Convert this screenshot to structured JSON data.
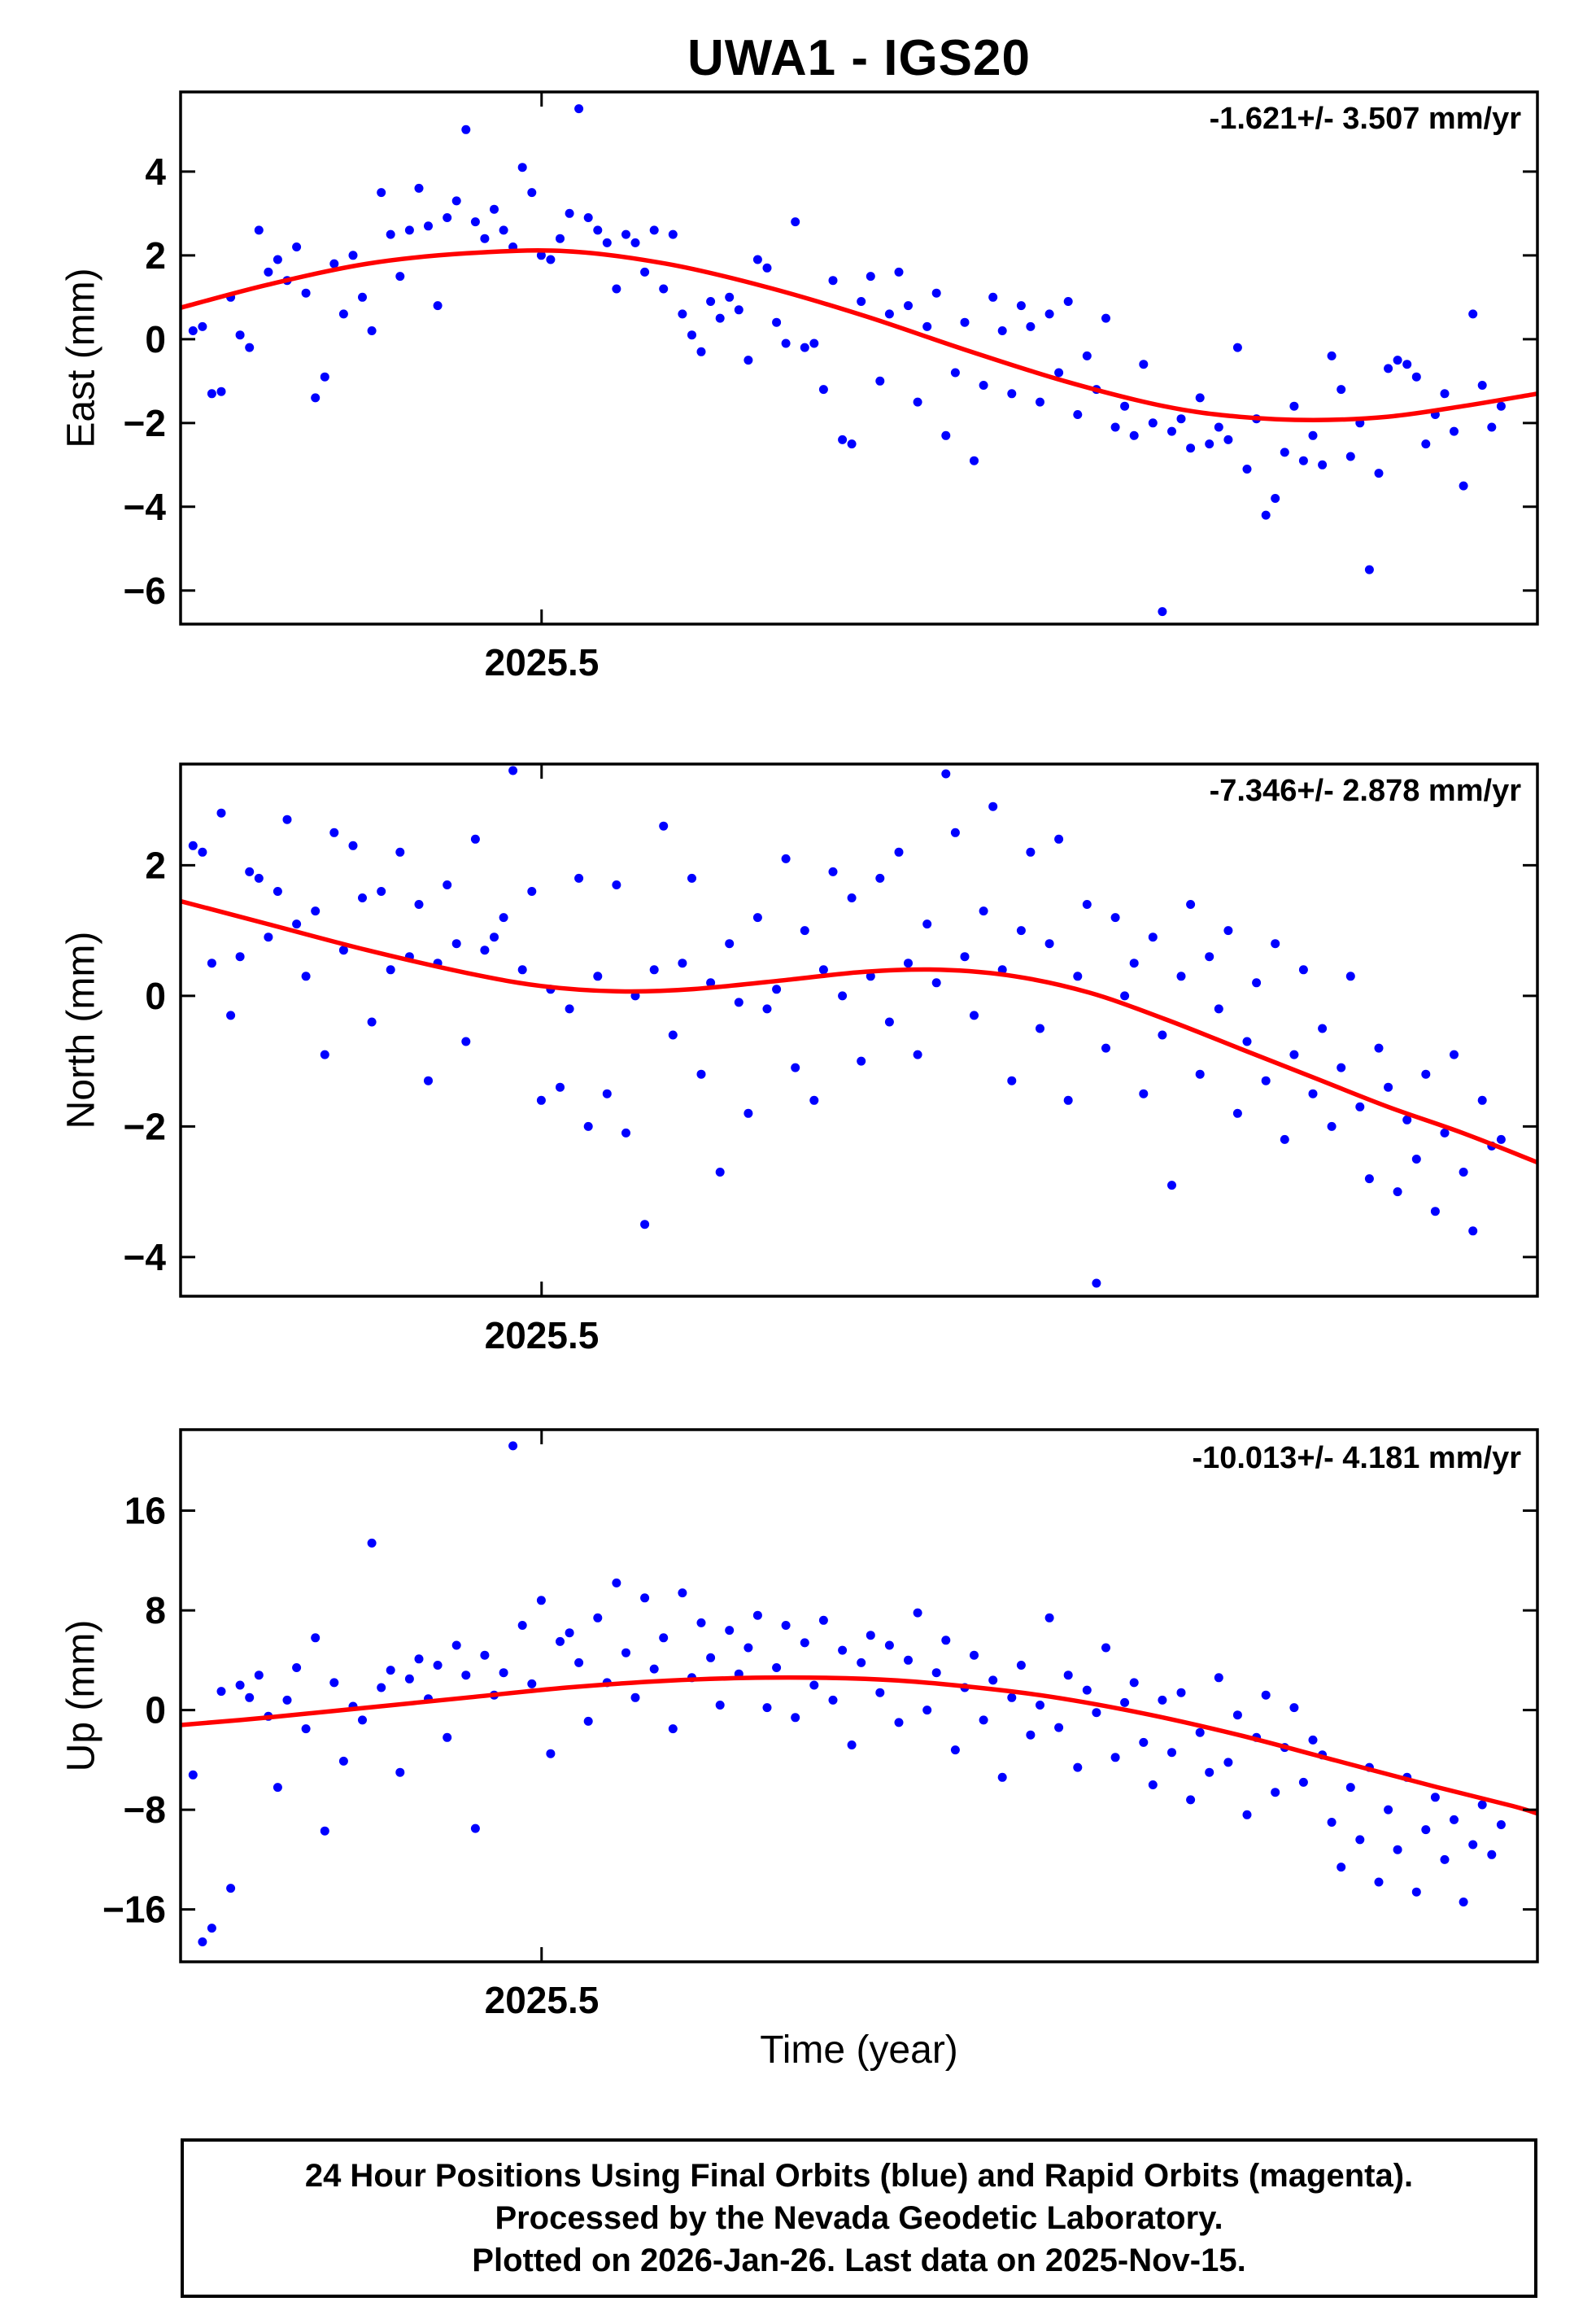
{
  "title": "UWA1 - IGS20",
  "xlabel": "Time (year)",
  "footer": {
    "lines": [
      "24 Hour Positions Using Final Orbits (blue) and Rapid Orbits (magenta).",
      "Processed by the Nevada Geodetic Laboratory.",
      "Plotted on 2026-Jan-26. Last data on 2025-Nov-15."
    ]
  },
  "colors": {
    "points": "#0000ff",
    "trend": "#ff0000",
    "frame": "#000000"
  },
  "chart_data": [
    {
      "type": "scatter",
      "name": "east",
      "ylabel": "East (mm)",
      "rate_label": "-1.621+/- 3.507 mm/yr",
      "xlim": [
        2025.355,
        2025.9
      ],
      "ylim": [
        -6.8,
        5.9
      ],
      "yticks": [
        4,
        2,
        0,
        -2,
        -4,
        -6
      ],
      "xticks": [
        {
          "t": 2025.5,
          "label": "2025.5"
        }
      ],
      "points": {
        "t0": 2025.36,
        "dt": 0.00378,
        "y": [
          0.2,
          0.3,
          -1.3,
          -1.25,
          1.0,
          0.1,
          -0.2,
          2.6,
          1.6,
          1.9,
          1.4,
          2.2,
          1.1,
          -1.4,
          -0.9,
          1.8,
          0.6,
          2.0,
          1.0,
          0.2,
          3.5,
          2.5,
          1.5,
          2.6,
          3.6,
          2.7,
          0.8,
          2.9,
          3.3,
          5.0,
          2.8,
          2.4,
          3.1,
          2.6,
          2.2,
          4.1,
          3.5,
          2.0,
          1.9,
          2.4,
          3.0,
          5.5,
          2.9,
          2.6,
          2.3,
          1.2,
          2.5,
          2.3,
          1.6,
          2.6,
          1.2,
          2.5,
          0.6,
          0.1,
          -0.3,
          0.9,
          0.5,
          1.0,
          0.7,
          -0.5,
          1.9,
          1.7,
          0.4,
          -0.1,
          2.8,
          -0.2,
          -0.1,
          -1.2,
          1.4,
          -2.4,
          -2.5,
          0.9,
          1.5,
          -1.0,
          0.6,
          1.6,
          0.8,
          -1.5,
          0.3,
          1.1,
          -2.3,
          -0.8,
          0.4,
          -2.9,
          -1.1,
          1.0,
          0.2,
          -1.3,
          0.8,
          0.3,
          -1.5,
          0.6,
          -0.8,
          0.9,
          -1.8,
          -0.4,
          -1.2,
          0.5,
          -2.1,
          -1.6,
          -2.3,
          -0.6,
          -2.0,
          -6.5,
          -2.2,
          -1.9,
          -2.6,
          -1.4,
          -2.5,
          -2.1,
          -2.4,
          -0.2,
          -3.1,
          -1.9,
          -4.2,
          -3.8,
          -2.7,
          -1.6,
          -2.9,
          -2.3,
          -3.0,
          -0.4,
          -1.2,
          -2.8,
          -2.0,
          -5.5,
          -3.2,
          -0.7,
          -0.5,
          -0.6,
          -0.9,
          -2.5,
          -1.8,
          -1.3,
          -2.2,
          -3.5,
          0.6,
          -1.1,
          -2.1,
          -1.6
        ]
      },
      "trend": [
        [
          2025.355,
          0.75
        ],
        [
          2025.39,
          1.3
        ],
        [
          2025.43,
          1.8
        ],
        [
          2025.47,
          2.05
        ],
        [
          2025.51,
          2.1
        ],
        [
          2025.55,
          1.8
        ],
        [
          2025.59,
          1.25
        ],
        [
          2025.63,
          0.55
        ],
        [
          2025.67,
          -0.25
        ],
        [
          2025.71,
          -1.0
        ],
        [
          2025.75,
          -1.6
        ],
        [
          2025.78,
          -1.85
        ],
        [
          2025.81,
          -1.93
        ],
        [
          2025.84,
          -1.85
        ],
        [
          2025.87,
          -1.6
        ],
        [
          2025.9,
          -1.3
        ]
      ]
    },
    {
      "type": "scatter",
      "name": "north",
      "ylabel": "North (mm)",
      "rate_label": "-7.346+/- 2.878 mm/yr",
      "xlim": [
        2025.355,
        2025.9
      ],
      "ylim": [
        -4.6,
        3.55
      ],
      "yticks": [
        2,
        0,
        -2,
        -4
      ],
      "xticks": [
        {
          "t": 2025.5,
          "label": "2025.5"
        }
      ],
      "points": {
        "t0": 2025.36,
        "dt": 0.00378,
        "y": [
          2.3,
          2.2,
          0.5,
          2.8,
          -0.3,
          0.6,
          1.9,
          1.8,
          0.9,
          1.6,
          2.7,
          1.1,
          0.3,
          1.3,
          -0.9,
          2.5,
          0.7,
          2.3,
          1.5,
          -0.4,
          1.6,
          0.4,
          2.2,
          0.6,
          1.4,
          -1.3,
          0.5,
          1.7,
          0.8,
          -0.7,
          2.4,
          0.7,
          0.9,
          1.2,
          3.45,
          0.4,
          1.6,
          -1.6,
          0.1,
          -1.4,
          -0.2,
          1.8,
          -2.0,
          0.3,
          -1.5,
          1.7,
          -2.1,
          0.0,
          -3.5,
          0.4,
          2.6,
          -0.6,
          0.5,
          1.8,
          -1.2,
          0.2,
          -2.7,
          0.8,
          -0.1,
          -1.8,
          1.2,
          -0.2,
          0.1,
          2.1,
          -1.1,
          1.0,
          -1.6,
          0.4,
          1.9,
          0.0,
          1.5,
          -1.0,
          0.3,
          1.8,
          -0.4,
          2.2,
          0.5,
          -0.9,
          1.1,
          0.2,
          3.4,
          2.5,
          0.6,
          -0.3,
          1.3,
          2.9,
          0.4,
          -1.3,
          1.0,
          2.2,
          -0.5,
          0.8,
          2.4,
          -1.6,
          0.3,
          1.4,
          -4.4,
          -0.8,
          1.2,
          0.0,
          0.5,
          -1.5,
          0.9,
          -0.6,
          -2.9,
          0.3,
          1.4,
          -1.2,
          0.6,
          -0.2,
          1.0,
          -1.8,
          -0.7,
          0.2,
          -1.3,
          0.8,
          -2.2,
          -0.9,
          0.4,
          -1.5,
          -0.5,
          -2.0,
          -1.1,
          0.3,
          -1.7,
          -2.8,
          -0.8,
          -1.4,
          -3.0,
          -1.9,
          -2.5,
          -1.2,
          -3.3,
          -2.1,
          -0.9,
          -2.7,
          -3.6,
          -1.6,
          -2.3,
          -2.2
        ]
      },
      "trend": [
        [
          2025.355,
          1.45
        ],
        [
          2025.39,
          1.1
        ],
        [
          2025.43,
          0.7
        ],
        [
          2025.47,
          0.35
        ],
        [
          2025.5,
          0.15
        ],
        [
          2025.53,
          0.07
        ],
        [
          2025.56,
          0.1
        ],
        [
          2025.6,
          0.25
        ],
        [
          2025.63,
          0.37
        ],
        [
          2025.66,
          0.4
        ],
        [
          2025.69,
          0.3
        ],
        [
          2025.72,
          0.05
        ],
        [
          2025.75,
          -0.35
        ],
        [
          2025.78,
          -0.8
        ],
        [
          2025.81,
          -1.25
        ],
        [
          2025.84,
          -1.7
        ],
        [
          2025.87,
          -2.1
        ],
        [
          2025.9,
          -2.55
        ]
      ]
    },
    {
      "type": "scatter",
      "name": "up",
      "ylabel": "Up (mm)",
      "rate_label": "-10.013+/- 4.181 mm/yr",
      "xlim": [
        2025.355,
        2025.9
      ],
      "ylim": [
        -20.2,
        22.5
      ],
      "yticks": [
        16,
        8,
        0,
        -8,
        -16
      ],
      "xticks": [
        {
          "t": 2025.5,
          "label": "2025.5"
        }
      ],
      "points": {
        "t0": 2025.36,
        "dt": 0.00378,
        "y": [
          -5.2,
          -18.6,
          -17.5,
          1.5,
          -14.3,
          2.0,
          1.0,
          2.8,
          -0.5,
          -6.2,
          0.8,
          3.4,
          -1.5,
          5.8,
          -9.7,
          2.2,
          -4.1,
          0.3,
          -0.8,
          13.4,
          1.8,
          3.2,
          -5.0,
          2.5,
          4.1,
          0.9,
          3.6,
          -2.2,
          5.2,
          2.8,
          -9.5,
          4.4,
          1.2,
          3.0,
          21.2,
          6.8,
          2.1,
          8.8,
          -3.5,
          5.5,
          6.2,
          3.8,
          -0.9,
          7.4,
          2.2,
          10.2,
          4.6,
          1.0,
          9.0,
          3.3,
          5.8,
          -1.5,
          9.4,
          2.6,
          7.0,
          4.2,
          0.4,
          6.4,
          2.9,
          5.0,
          7.6,
          0.2,
          3.4,
          6.8,
          -0.6,
          5.4,
          2.0,
          7.2,
          0.8,
          4.8,
          -2.8,
          3.8,
          6.0,
          1.4,
          5.2,
          -1.0,
          4.0,
          7.8,
          0.0,
          3.0,
          5.6,
          -3.2,
          1.8,
          4.4,
          -0.8,
          2.4,
          -5.4,
          1.0,
          3.6,
          -2.0,
          0.4,
          7.4,
          -1.4,
          2.8,
          -4.6,
          1.6,
          -0.2,
          5.0,
          -3.8,
          0.6,
          2.2,
          -2.6,
          -6.0,
          0.8,
          -3.4,
          1.4,
          -7.2,
          -1.8,
          -5.0,
          2.6,
          -4.2,
          -0.4,
          -8.4,
          -2.2,
          1.2,
          -6.6,
          -3.0,
          0.2,
          -5.8,
          -2.4,
          -3.6,
          -9.0,
          -12.6,
          -6.2,
          -10.4,
          -4.6,
          -13.8,
          -8.0,
          -11.2,
          -5.4,
          -14.6,
          -9.6,
          -7.0,
          -12.0,
          -8.8,
          -15.4,
          -10.8,
          -7.6,
          -11.6,
          -9.2
        ]
      },
      "trend": [
        [
          2025.355,
          -1.2
        ],
        [
          2025.39,
          -0.6
        ],
        [
          2025.43,
          0.2
        ],
        [
          2025.47,
          1.0
        ],
        [
          2025.51,
          1.8
        ],
        [
          2025.55,
          2.35
        ],
        [
          2025.59,
          2.6
        ],
        [
          2025.63,
          2.5
        ],
        [
          2025.66,
          2.1
        ],
        [
          2025.7,
          1.2
        ],
        [
          2025.74,
          -0.2
        ],
        [
          2025.78,
          -2.0
        ],
        [
          2025.82,
          -4.1
        ],
        [
          2025.86,
          -6.2
        ],
        [
          2025.89,
          -7.7
        ],
        [
          2025.9,
          -8.3
        ]
      ]
    }
  ]
}
